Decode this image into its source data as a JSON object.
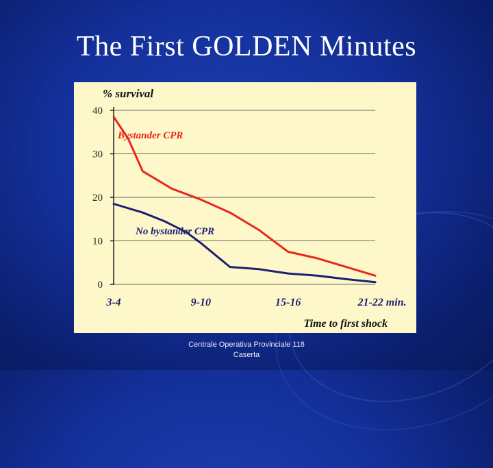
{
  "slide": {
    "title": "The First GOLDEN Minutes",
    "footer_line1": "Centrale Operativa Provinciale 118",
    "footer_line2": "Caserta"
  },
  "chart_data": {
    "type": "line",
    "ylabel": "% survival",
    "xlabel": "Time to first shock",
    "ylim": [
      0,
      40
    ],
    "yticks": [
      0,
      10,
      20,
      30,
      40
    ],
    "xticks": [
      "3-4",
      "9-10",
      "15-16",
      "21-22 min."
    ],
    "xlim": [
      3.5,
      21.5
    ],
    "grid": true,
    "colors": {
      "bystander": "#e8281c",
      "no_bystander": "#1c1f73",
      "grid": "#666666"
    },
    "series": [
      {
        "name": "Bystander CPR",
        "x": [
          3.5,
          4.5,
          5.5,
          7.5,
          9.5,
          11.5,
          13.5,
          15.5,
          17.5,
          19.5,
          21.5
        ],
        "y": [
          38.5,
          33.5,
          26,
          22,
          19.5,
          16.5,
          12.5,
          7.5,
          6,
          4,
          2
        ]
      },
      {
        "name": "No bystander CPR",
        "x": [
          3.5,
          5.5,
          7.0,
          8.5,
          9.5,
          11.5,
          13.5,
          15.5,
          17.5,
          19.5,
          21.5
        ],
        "y": [
          18.5,
          16.5,
          14.5,
          12,
          9.5,
          4,
          3.5,
          2.5,
          2,
          1.2,
          0.5
        ]
      }
    ]
  }
}
